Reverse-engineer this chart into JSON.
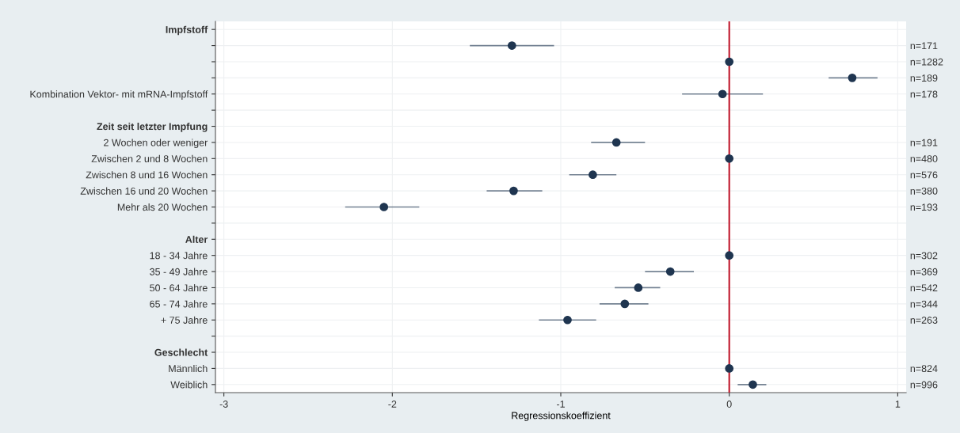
{
  "chart_data": {
    "type": "scatter",
    "orientation": "horizontal",
    "xlabel": "Regressionskoeffizient",
    "categories": [
      "Impfstoff",
      null,
      null,
      null,
      "Kombination Vektor- mit mRNA-Impfstoff",
      null,
      "Zeit seit letzter Impfung",
      "2 Wochen oder weniger",
      "Zwischen 2 und 8 Wochen",
      "Zwischen 8 und 16 Wochen",
      "Zwischen 16 und 20 Wochen",
      "Mehr als 20 Wochen",
      null,
      "Alter",
      "18 - 34 Jahre",
      "35 - 49 Jahre",
      "50 - 64 Jahre",
      "65 - 74 Jahre",
      "+ 75 Jahre",
      null,
      "Geschlecht",
      "Männlich",
      "Weiblich"
    ],
    "y2_categories": [
      null,
      "n=171",
      "n=1282",
      "n=189",
      "n=178",
      null,
      null,
      "n=191",
      "n=480",
      "n=576",
      "n=380",
      "n=193",
      null,
      null,
      "n=302",
      "n=369",
      "n=542",
      "n=344",
      "n=263",
      null,
      null,
      "n=824",
      "n=996"
    ],
    "series": [
      {
        "color": "#1f3550",
        "values": [
          null,
          -1.29,
          0,
          0.73,
          -0.04,
          null,
          null,
          -0.67,
          0,
          -0.81,
          -1.28,
          -2.05,
          null,
          null,
          0,
          -0.35,
          -0.54,
          -0.62,
          -0.96,
          null,
          null,
          0,
          0.14
        ],
        "errors": [
          null,
          [
            -1.54,
            -1.04
          ],
          null,
          [
            0.59,
            0.88
          ],
          [
            -0.28,
            0.2
          ],
          null,
          null,
          [
            -0.82,
            -0.5
          ],
          null,
          [
            -0.95,
            -0.67
          ],
          [
            -1.44,
            -1.11
          ],
          [
            -2.28,
            -1.84
          ],
          null,
          null,
          null,
          [
            -0.5,
            -0.21
          ],
          [
            -0.68,
            -0.41
          ],
          [
            -0.77,
            -0.48
          ],
          [
            -1.13,
            -0.79
          ],
          null,
          null,
          null,
          [
            0.05,
            0.22
          ]
        ]
      }
    ],
    "xlim": [
      -3.05,
      1.05
    ],
    "xticks": [
      -3,
      -2,
      -1,
      0,
      1
    ],
    "grid": true,
    "marker": "circle",
    "ref_lines": [
      {
        "axis": "x",
        "value": 0,
        "color": "#c0172b"
      }
    ]
  }
}
